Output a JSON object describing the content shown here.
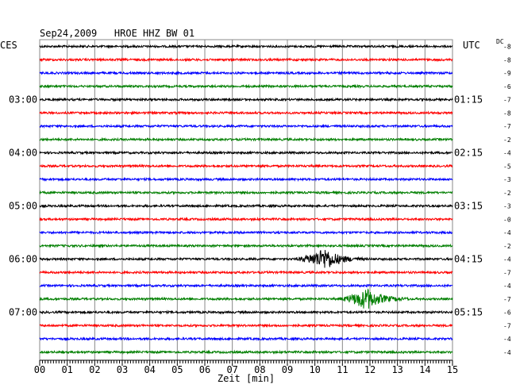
{
  "header": {
    "title": "Sep24,2009   HROE HHZ BW 01",
    "left_zone": "CES",
    "right_zone": "UTC",
    "dc_label": "DC"
  },
  "chart_data": {
    "type": "line",
    "title": "Sep24,2009   HROE HHZ BW 01",
    "xlabel": "Zeit [min]",
    "ylabel": "",
    "xlim": [
      0,
      15
    ],
    "x_ticks": [
      "00",
      "01",
      "02",
      "03",
      "04",
      "05",
      "06",
      "07",
      "08",
      "09",
      "10",
      "11",
      "12",
      "13",
      "14",
      "15"
    ],
    "trace_colors": [
      "#000000",
      "#ff0000",
      "#0000ff",
      "#007f00"
    ],
    "grid": true,
    "left_hour_labels": [
      {
        "row": 4,
        "label": "03:00"
      },
      {
        "row": 8,
        "label": "04:00"
      },
      {
        "row": 12,
        "label": "05:00"
      },
      {
        "row": 16,
        "label": "06:00"
      },
      {
        "row": 20,
        "label": "07:00"
      }
    ],
    "right_hour_labels": [
      {
        "row": 4,
        "label": "01:15"
      },
      {
        "row": 8,
        "label": "02:15"
      },
      {
        "row": 12,
        "label": "03:15"
      },
      {
        "row": 16,
        "label": "04:15"
      },
      {
        "row": 20,
        "label": "05:15"
      }
    ],
    "dc_offsets": [
      "-8",
      "-8",
      "-9",
      "-6",
      "-7",
      "-8",
      "-7",
      "-2",
      "-4",
      "-5",
      "-3",
      "-2",
      "-3",
      "-0",
      "-4",
      "-2",
      "-4",
      "-7",
      "-4",
      "-7",
      "-6",
      "-7",
      "-4",
      "-4"
    ],
    "events": [
      {
        "row": 16,
        "start_min": 9.2,
        "peak_min": 10.4,
        "end_min": 11.8
      },
      {
        "row": 19,
        "start_min": 10.8,
        "peak_min": 11.9,
        "end_min": 13.5
      }
    ]
  }
}
